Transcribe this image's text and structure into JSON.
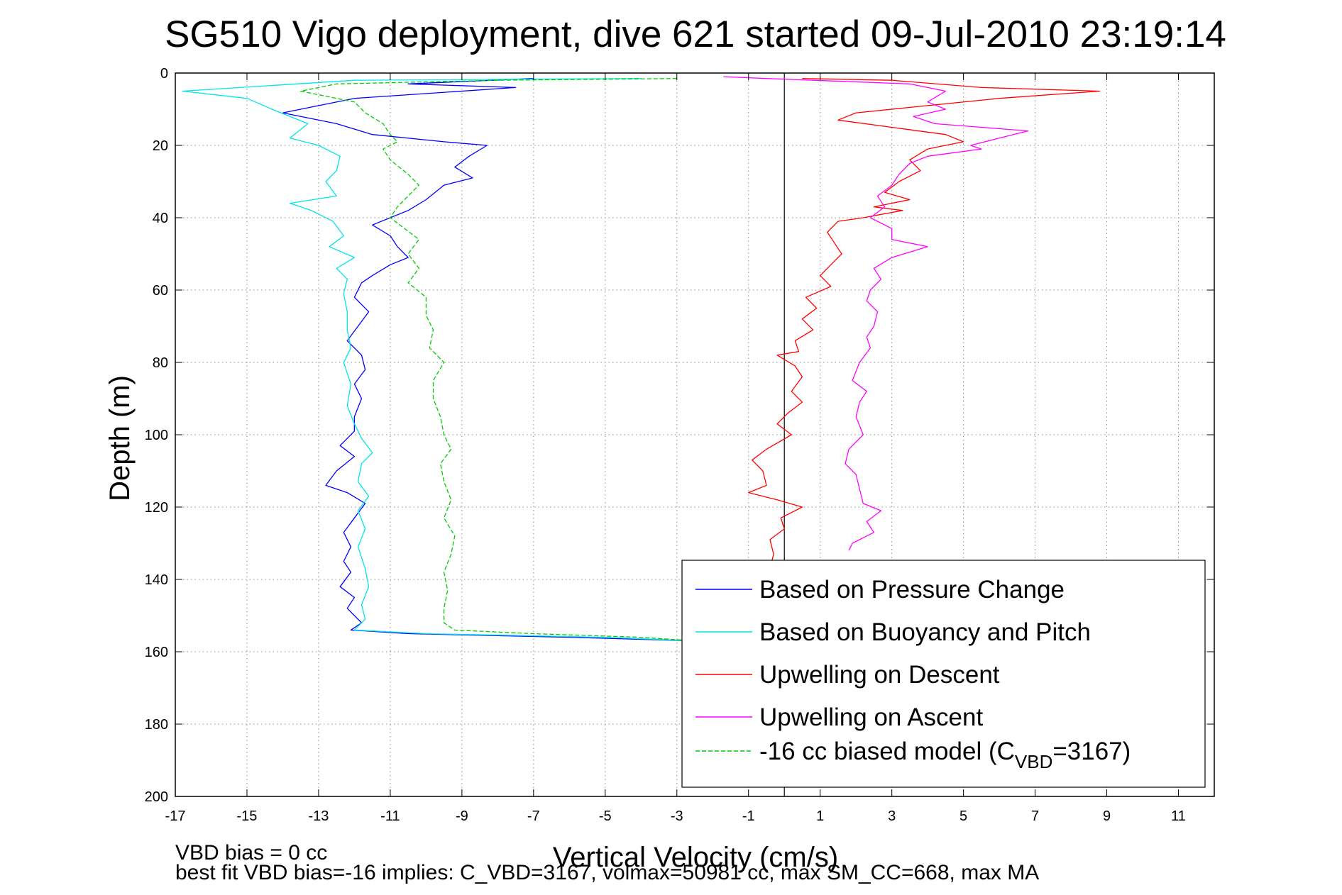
{
  "chart_data": {
    "type": "line",
    "title": "SG510 Vigo deployment, dive 621 started 09-Jul-2010 23:19:14",
    "xlabel": "Vertical Velocity (cm/s)",
    "ylabel": "Depth (m)",
    "xlim": [
      -17,
      12
    ],
    "ylim": [
      0,
      200
    ],
    "y_reversed": true,
    "grid": true,
    "x_ticks": [
      -17,
      -15,
      -13,
      -11,
      -9,
      -7,
      -5,
      -3,
      -1,
      1,
      3,
      5,
      7,
      9,
      11
    ],
    "y_ticks": [
      0,
      20,
      40,
      60,
      80,
      100,
      120,
      140,
      160,
      180,
      200
    ],
    "zero_line_x": 0,
    "legend_position": "lower-right",
    "series": [
      {
        "name": "Based on Pressure Change",
        "color": "#0000ff",
        "dash": "solid",
        "points": [
          [
            -7,
            1.5
          ],
          [
            -10.5,
            3
          ],
          [
            -7.5,
            4
          ],
          [
            -12,
            7
          ],
          [
            -13.5,
            10
          ],
          [
            -14,
            11
          ],
          [
            -12.5,
            14
          ],
          [
            -11.5,
            17
          ],
          [
            -9.5,
            19
          ],
          [
            -8.3,
            20
          ],
          [
            -8.8,
            23
          ],
          [
            -9.2,
            26
          ],
          [
            -8.7,
            29
          ],
          [
            -9.5,
            31
          ],
          [
            -10,
            35
          ],
          [
            -10.5,
            38
          ],
          [
            -11,
            40
          ],
          [
            -11.5,
            42
          ],
          [
            -11,
            45
          ],
          [
            -10.8,
            48
          ],
          [
            -10.5,
            51
          ],
          [
            -11,
            53
          ],
          [
            -11.5,
            56
          ],
          [
            -11.8,
            58
          ],
          [
            -12,
            62
          ],
          [
            -11.6,
            66
          ],
          [
            -11.9,
            70
          ],
          [
            -12.2,
            74
          ],
          [
            -11.8,
            78
          ],
          [
            -11.7,
            82
          ],
          [
            -12,
            86
          ],
          [
            -11.8,
            90
          ],
          [
            -12,
            95
          ],
          [
            -12,
            99
          ],
          [
            -12.4,
            103
          ],
          [
            -12,
            106
          ],
          [
            -12.5,
            110
          ],
          [
            -12.8,
            114
          ],
          [
            -12.2,
            116
          ],
          [
            -11.7,
            119
          ],
          [
            -12,
            123
          ],
          [
            -12.3,
            127
          ],
          [
            -12.1,
            131
          ],
          [
            -12.3,
            135
          ],
          [
            -12.1,
            138
          ],
          [
            -12.4,
            142
          ],
          [
            -12,
            145
          ],
          [
            -12.2,
            148
          ],
          [
            -11.8,
            152
          ],
          [
            -12.1,
            154
          ],
          [
            -10.5,
            155
          ],
          [
            -6,
            156
          ],
          [
            -2.5,
            157
          ]
        ]
      },
      {
        "name": "Based on Buoyancy and Pitch",
        "color": "#00e5e5",
        "dash": "solid",
        "points": [
          [
            -4,
            1.5
          ],
          [
            -12,
            2
          ],
          [
            -16.8,
            5
          ],
          [
            -15,
            7
          ],
          [
            -14.3,
            10
          ],
          [
            -13.3,
            14
          ],
          [
            -13.8,
            18
          ],
          [
            -13,
            20
          ],
          [
            -12.4,
            23
          ],
          [
            -12.5,
            27
          ],
          [
            -12.8,
            30
          ],
          [
            -12.5,
            34
          ],
          [
            -13.8,
            36
          ],
          [
            -13.2,
            38
          ],
          [
            -12.6,
            41
          ],
          [
            -12.3,
            45
          ],
          [
            -12.7,
            48
          ],
          [
            -12,
            51
          ],
          [
            -12.5,
            54
          ],
          [
            -12.2,
            57
          ],
          [
            -12.3,
            61
          ],
          [
            -12.2,
            66
          ],
          [
            -12.2,
            71
          ],
          [
            -12.1,
            76
          ],
          [
            -12.3,
            80
          ],
          [
            -12.1,
            86
          ],
          [
            -12.2,
            92
          ],
          [
            -12,
            97
          ],
          [
            -11.8,
            101
          ],
          [
            -11.5,
            105
          ],
          [
            -11.8,
            108
          ],
          [
            -11.9,
            113
          ],
          [
            -11.6,
            117
          ],
          [
            -11.9,
            121
          ],
          [
            -11.7,
            126
          ],
          [
            -11.9,
            131
          ],
          [
            -11.7,
            137
          ],
          [
            -11.6,
            142
          ],
          [
            -11.8,
            147
          ],
          [
            -11.7,
            151
          ],
          [
            -12,
            154
          ],
          [
            -10,
            155
          ],
          [
            -5,
            156
          ],
          [
            -2.5,
            157
          ]
        ]
      },
      {
        "name": "Upwelling on Descent",
        "color": "#ff0000",
        "dash": "solid",
        "points": [
          [
            0.5,
            1.5
          ],
          [
            3,
            2
          ],
          [
            5.5,
            4
          ],
          [
            8.8,
            5
          ],
          [
            6,
            7
          ],
          [
            4,
            9
          ],
          [
            2,
            11
          ],
          [
            1.5,
            13
          ],
          [
            3,
            15
          ],
          [
            4.5,
            17
          ],
          [
            5,
            19
          ],
          [
            4,
            21
          ],
          [
            3.5,
            24
          ],
          [
            3.8,
            27
          ],
          [
            3.2,
            30
          ],
          [
            2.8,
            33
          ],
          [
            3.5,
            35
          ],
          [
            2.5,
            37
          ],
          [
            3.3,
            38
          ],
          [
            2.2,
            40
          ],
          [
            1.5,
            41
          ],
          [
            1.2,
            44
          ],
          [
            1.4,
            47
          ],
          [
            1.6,
            50
          ],
          [
            1.3,
            53
          ],
          [
            1,
            56
          ],
          [
            1.3,
            59
          ],
          [
            0.6,
            62
          ],
          [
            0.9,
            65
          ],
          [
            0.5,
            68
          ],
          [
            0.8,
            71
          ],
          [
            0.3,
            74
          ],
          [
            0.4,
            77
          ],
          [
            -0.2,
            78
          ],
          [
            0.3,
            81
          ],
          [
            0.5,
            84
          ],
          [
            0.2,
            88
          ],
          [
            0.5,
            91
          ],
          [
            0.1,
            94
          ],
          [
            -0.2,
            97
          ],
          [
            0.2,
            100
          ],
          [
            -0.5,
            104
          ],
          [
            -0.9,
            107
          ],
          [
            -0.6,
            110
          ],
          [
            -0.5,
            114
          ],
          [
            -1,
            116
          ],
          [
            -0.2,
            118
          ],
          [
            0.5,
            120
          ],
          [
            -0.1,
            123
          ],
          [
            0,
            126
          ],
          [
            -0.4,
            129
          ],
          [
            -0.3,
            133
          ],
          [
            -0.4,
            137
          ]
        ]
      },
      {
        "name": "Upwelling on Ascent",
        "color": "#ff00ff",
        "dash": "solid",
        "points": [
          [
            -1.7,
            1
          ],
          [
            -0.5,
            1.5
          ],
          [
            3.5,
            3
          ],
          [
            4.5,
            5
          ],
          [
            4,
            8
          ],
          [
            4.5,
            10
          ],
          [
            3.6,
            12
          ],
          [
            4.2,
            14
          ],
          [
            5.5,
            15
          ],
          [
            6.8,
            16
          ],
          [
            6,
            18
          ],
          [
            5.2,
            20
          ],
          [
            5.5,
            21
          ],
          [
            4,
            23
          ],
          [
            3.5,
            25
          ],
          [
            3.2,
            28
          ],
          [
            3,
            31
          ],
          [
            2.6,
            34
          ],
          [
            2.8,
            37
          ],
          [
            2.4,
            40
          ],
          [
            3,
            43
          ],
          [
            3,
            46
          ],
          [
            4,
            48
          ],
          [
            3,
            51
          ],
          [
            2.5,
            54
          ],
          [
            2.7,
            57
          ],
          [
            2.4,
            60
          ],
          [
            2.3,
            63
          ],
          [
            2.6,
            66
          ],
          [
            2.5,
            70
          ],
          [
            2.3,
            73
          ],
          [
            2.4,
            76
          ],
          [
            2.1,
            80
          ],
          [
            1.9,
            85
          ],
          [
            2.3,
            88
          ],
          [
            2.1,
            91
          ],
          [
            2,
            95
          ],
          [
            2.2,
            100
          ],
          [
            1.8,
            104
          ],
          [
            1.7,
            108
          ],
          [
            2,
            111
          ],
          [
            2.1,
            115
          ],
          [
            2.2,
            119
          ],
          [
            2.7,
            121
          ],
          [
            2.3,
            124
          ],
          [
            2.5,
            127
          ],
          [
            1.9,
            130
          ],
          [
            1.8,
            132
          ]
        ]
      },
      {
        "name": "-16 cc biased model (C_VBD=3167)",
        "color": "#00cc00",
        "dash": "dashed",
        "points": [
          [
            -3,
            1.5
          ],
          [
            -8,
            2
          ],
          [
            -12.5,
            3
          ],
          [
            -13.5,
            5
          ],
          [
            -12,
            8
          ],
          [
            -11.7,
            11
          ],
          [
            -11.2,
            14
          ],
          [
            -11,
            17
          ],
          [
            -10.8,
            19
          ],
          [
            -11.2,
            21
          ],
          [
            -11,
            24
          ],
          [
            -10.5,
            28
          ],
          [
            -10.2,
            31
          ],
          [
            -10.5,
            34
          ],
          [
            -10.8,
            37
          ],
          [
            -11,
            40
          ],
          [
            -10.6,
            43
          ],
          [
            -10.2,
            46
          ],
          [
            -10.5,
            50
          ],
          [
            -10.2,
            54
          ],
          [
            -10.5,
            58
          ],
          [
            -10,
            62
          ],
          [
            -10,
            67
          ],
          [
            -9.8,
            71
          ],
          [
            -9.9,
            76
          ],
          [
            -9.5,
            80
          ],
          [
            -9.8,
            85
          ],
          [
            -9.8,
            90
          ],
          [
            -9.6,
            95
          ],
          [
            -9.5,
            100
          ],
          [
            -9.3,
            104
          ],
          [
            -9.6,
            108
          ],
          [
            -9.5,
            113
          ],
          [
            -9.3,
            118
          ],
          [
            -9.5,
            123
          ],
          [
            -9.2,
            128
          ],
          [
            -9.3,
            133
          ],
          [
            -9.5,
            138
          ],
          [
            -9.4,
            143
          ],
          [
            -9.5,
            148
          ],
          [
            -9.5,
            152
          ],
          [
            -9.2,
            154
          ],
          [
            -7,
            155
          ],
          [
            -4,
            156
          ],
          [
            -2.5,
            157
          ]
        ]
      }
    ],
    "legend": [
      {
        "label": "Based on Pressure Change",
        "color": "#0000ff",
        "dash": "solid"
      },
      {
        "label": "Based on Buoyancy and Pitch",
        "color": "#00e5e5",
        "dash": "solid"
      },
      {
        "label": "Upwelling on Descent",
        "color": "#ff0000",
        "dash": "solid"
      },
      {
        "label": "Upwelling on Ascent",
        "color": "#ff00ff",
        "dash": "solid"
      },
      {
        "label": "-16 cc biased model (C",
        "sub": "VBD",
        "after": "=3167)",
        "color": "#00cc00",
        "dash": "dashed"
      }
    ],
    "annotations": [
      "VBD bias = 0 cc",
      "best fit VBD bias=-16 implies: C_VBD=3167, volmax=50981 cc, max SM_CC=668, max MA"
    ]
  }
}
